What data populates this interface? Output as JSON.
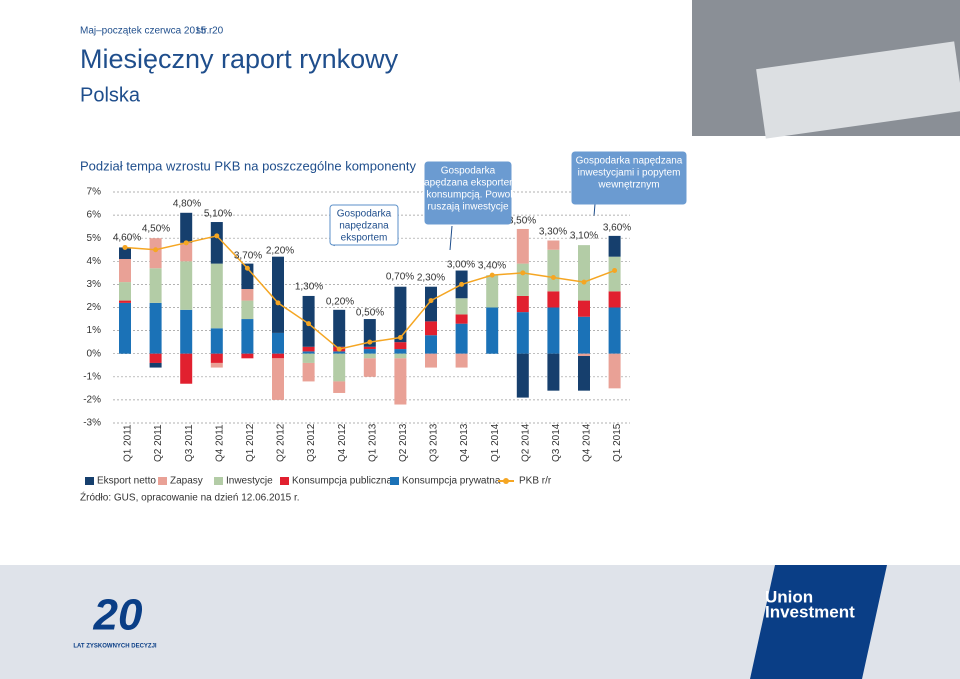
{
  "header": {
    "date": "Maj–początek czerwca 2015 r.",
    "page": "str. 20",
    "title": "Miesięczny raport rynkowy",
    "subtitle": "Polska"
  },
  "chart_data": {
    "type": "stacked-bar-line",
    "title": "Podział tempa wzrostu PKB na poszczególne komponenty",
    "categories": [
      "Q1 2011",
      "Q2 2011",
      "Q3 2011",
      "Q4 2011",
      "Q1 2012",
      "Q2 2012",
      "Q3 2012",
      "Q4 2012",
      "Q1 2013",
      "Q2 2013",
      "Q3 2013",
      "Q4 2013",
      "Q1 2014",
      "Q2 2014",
      "Q3 2014",
      "Q4 2014",
      "Q1 2015"
    ],
    "ylim": [
      -3,
      7
    ],
    "yticks": [
      {
        "value": -3,
        "label": "-3%"
      },
      {
        "value": -2,
        "label": "-2%"
      },
      {
        "value": -1,
        "label": "-1%"
      },
      {
        "value": 0,
        "label": "0%"
      },
      {
        "value": 1,
        "label": "1%"
      },
      {
        "value": 2,
        "label": "2%"
      },
      {
        "value": 3,
        "label": "3%"
      },
      {
        "value": 4,
        "label": "4%"
      },
      {
        "value": 5,
        "label": "5%"
      },
      {
        "value": 6,
        "label": "6%"
      },
      {
        "value": 7,
        "label": "7%"
      }
    ],
    "grid": true,
    "series": [
      {
        "name": "Eksport netto",
        "color": "#163f6d",
        "values": [
          0.5,
          -0.2,
          1.3,
          1.8,
          1.1,
          3.3,
          2.2,
          1.6,
          1.2,
          2.4,
          1.5,
          1.2,
          0,
          -1.9,
          -1.6,
          -1.5,
          0.9
        ]
      },
      {
        "name": "Zapasy",
        "color": "#e9a196",
        "values": [
          1.0,
          1.3,
          0.8,
          -0.2,
          0.5,
          -1.8,
          -0.8,
          -0.5,
          -0.8,
          -2.0,
          -0.6,
          -0.6,
          0,
          1.5,
          0.4,
          -0.1,
          -1.5
        ]
      },
      {
        "name": "Inwestycje",
        "color": "#b3cca6",
        "values": [
          0.8,
          1.5,
          2.1,
          2.8,
          0.8,
          0,
          -0.4,
          -1.2,
          -0.2,
          -0.2,
          0,
          0.7,
          1.4,
          1.4,
          1.8,
          2.4,
          1.5
        ]
      },
      {
        "name": "Konsumpcja publiczna",
        "color": "#e1202f",
        "values": [
          0.1,
          -0.4,
          -1.3,
          -0.4,
          -0.2,
          -0.2,
          0.2,
          0.2,
          0.1,
          0.3,
          0.6,
          0.4,
          0,
          0.7,
          0.7,
          0.7,
          0.7
        ]
      },
      {
        "name": "Konsumpcja prywatna",
        "color": "#1b72b7",
        "values": [
          2.2,
          2.2,
          1.9,
          1.1,
          1.5,
          0.9,
          0.1,
          0.1,
          0.2,
          0.2,
          0.8,
          1.3,
          2.0,
          1.8,
          2.0,
          1.6,
          2.0
        ]
      },
      {
        "name": "PKB r/r",
        "color": "#f5a623",
        "type": "line",
        "values": [
          4.6,
          4.5,
          4.8,
          5.1,
          3.7,
          2.2,
          1.3,
          0.2,
          0.5,
          0.7,
          2.3,
          3.0,
          3.4,
          3.5,
          3.3,
          3.1,
          3.6
        ],
        "value_labels": [
          "4,60%",
          "4,50%",
          "4,80%",
          "5,10%",
          "3,70%",
          "2,20%",
          "1,30%",
          "0,20%",
          "0,50%",
          "0,70%",
          "2,30%",
          "3,00%",
          "3,40%",
          "3,50%",
          "3,30%",
          "3,10%",
          "3,60%"
        ]
      }
    ],
    "annotations": [
      {
        "lines": [
          "Gospodarka",
          "napędzana",
          "eksportem"
        ]
      },
      {
        "lines": [
          "Gospodarka",
          "napędzana eksportem",
          "i konsumpcją. Powoli",
          "ruszają inwestycje"
        ]
      },
      {
        "lines": [
          "Gospodarka napędzana",
          "inwestycjami i popytem",
          "wewnętrznym"
        ]
      }
    ],
    "source": "Źródło: GUS, opracowanie na dzień 12.06.2015 r."
  },
  "footer": {
    "anniversary": "20",
    "anniversary_caption": "LAT ZYSKOWNYCH DECYZJI",
    "brand": [
      "Union",
      "Investment"
    ]
  }
}
